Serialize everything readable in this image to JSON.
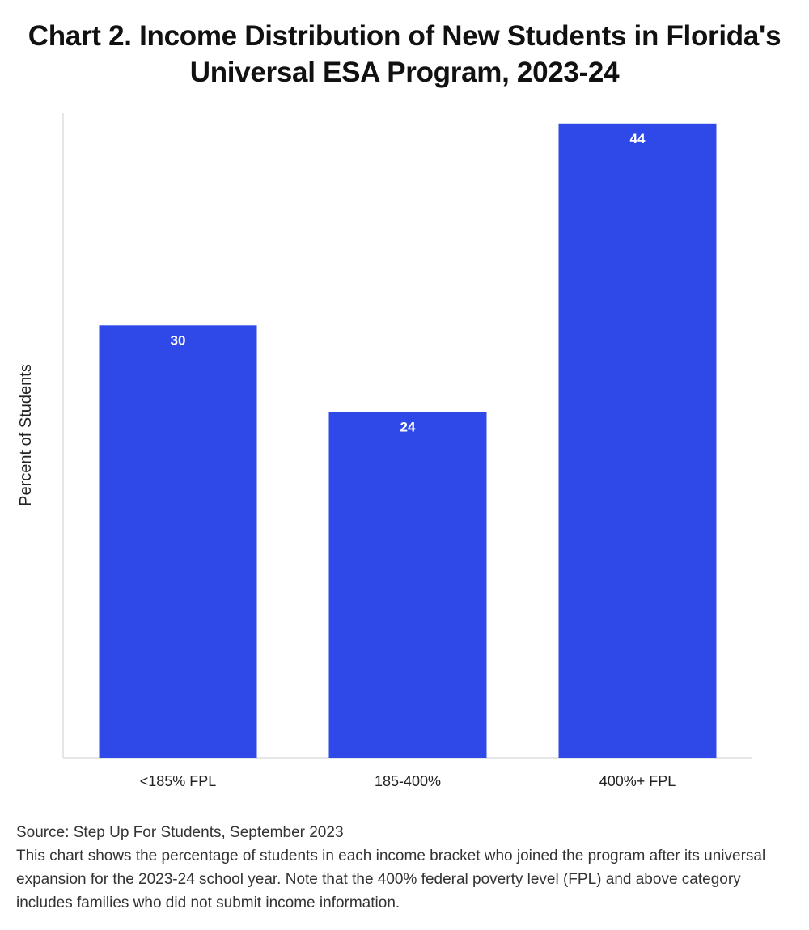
{
  "chart_data": {
    "type": "bar",
    "title": "Chart 2. Income Distribution of New Students in Florida's Universal ESA Program, 2023-24",
    "ylabel": "Percent of Students",
    "xlabel": "",
    "categories": [
      "<185% FPL",
      "185-400%",
      "400%+ FPL"
    ],
    "values": [
      30,
      24,
      44
    ],
    "data_labels": [
      "30",
      "24",
      "44"
    ],
    "ylim": [
      0,
      45
    ],
    "grid": false,
    "legend": "none",
    "bar_color": "#2f49e8"
  },
  "footer": {
    "source": "Source: Step Up For Students, September 2023",
    "note": "This chart shows the percentage of students in each income bracket who joined the program after its universal expansion for the 2023-24 school year. Note that the 400% federal poverty level (FPL) and above category includes families who did not submit income information."
  }
}
